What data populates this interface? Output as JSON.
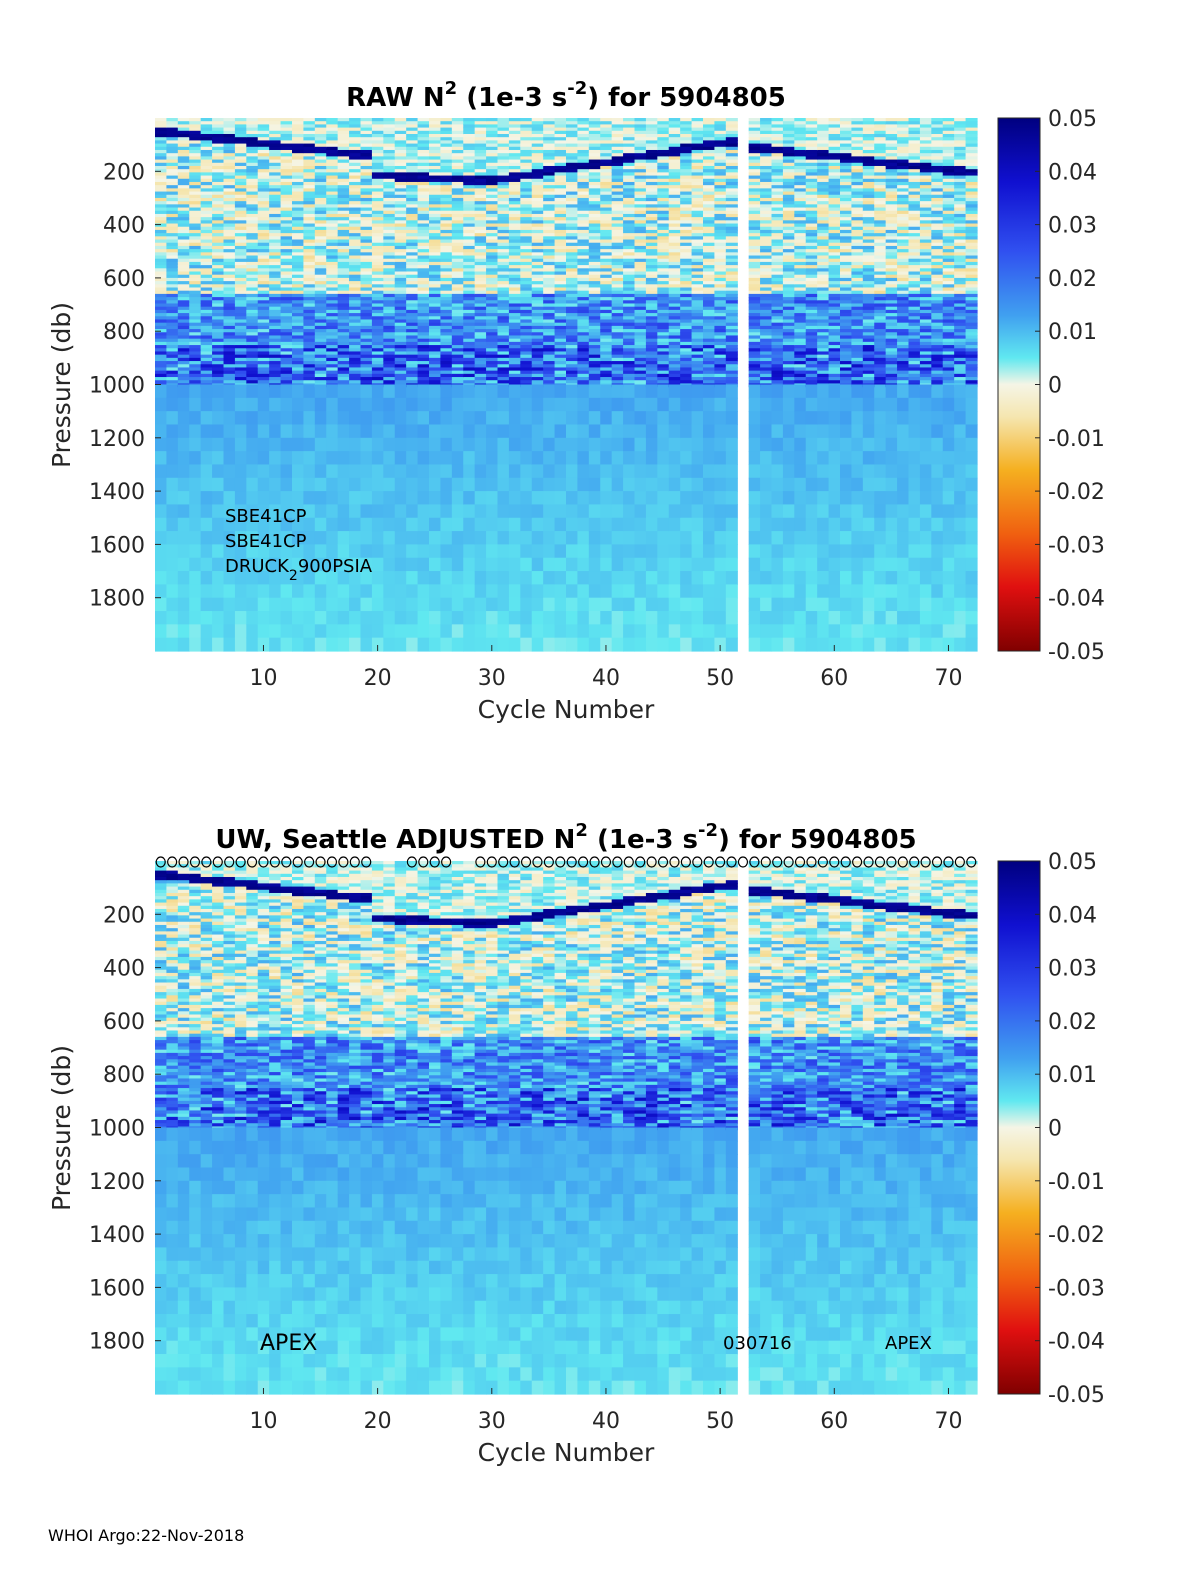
{
  "footer": "WHOI Argo:22-Nov-2018",
  "chart_data": [
    {
      "type": "heatmap",
      "title_prefix": "RAW N",
      "title_suffix": " (1e-3 s",
      "title_exp2": "-2",
      "title_end": ") for 5904805",
      "title_sup": "2",
      "xlabel": "Cycle Number",
      "ylabel": "Pressure (db)",
      "xlim": [
        1,
        72
      ],
      "ylim": [
        2000,
        0
      ],
      "xticks": [
        "10",
        "20",
        "30",
        "40",
        "50",
        "60",
        "70"
      ],
      "yticks": [
        "200",
        "400",
        "600",
        "800",
        "1000",
        "1200",
        "1400",
        "1600",
        "1800"
      ],
      "missing_cycles": [
        52
      ],
      "colorbar": {
        "min": -0.05,
        "max": 0.05,
        "ticks": [
          "0.05",
          "0.04",
          "0.03",
          "0.02",
          "0.01",
          "0",
          "-0.01",
          "-0.02",
          "-0.03",
          "-0.04",
          "-0.05"
        ]
      },
      "annotations": {
        "sensor1": "SBE41CP",
        "sensor2": "SBE41CP",
        "pressure_sensor_a": "DRUCK",
        "pressure_sensor_sub": "2",
        "pressure_sensor_b": "900PSIA"
      }
    },
    {
      "type": "heatmap",
      "title_prefix": "UW, Seattle  ADJUSTED N",
      "title_suffix": " (1e-3 s",
      "title_exp2": "-2",
      "title_end": ") for 5904805",
      "title_sup": "2",
      "xlabel": "Cycle Number",
      "ylabel": "Pressure (db)",
      "xlim": [
        1,
        72
      ],
      "ylim": [
        2000,
        0
      ],
      "xticks": [
        "10",
        "20",
        "30",
        "40",
        "50",
        "60",
        "70"
      ],
      "yticks": [
        "200",
        "400",
        "600",
        "800",
        "1000",
        "1200",
        "1400",
        "1600",
        "1800"
      ],
      "missing_cycles": [
        52
      ],
      "colorbar": {
        "min": -0.05,
        "max": 0.05,
        "ticks": [
          "0.05",
          "0.04",
          "0.03",
          "0.02",
          "0.01",
          "0",
          "-0.01",
          "-0.02",
          "-0.03",
          "-0.04",
          "-0.05"
        ]
      },
      "top_markers": "o",
      "annotations": {
        "platform_left": "APEX",
        "firmware": "030716",
        "platform_right": "APEX"
      }
    }
  ]
}
